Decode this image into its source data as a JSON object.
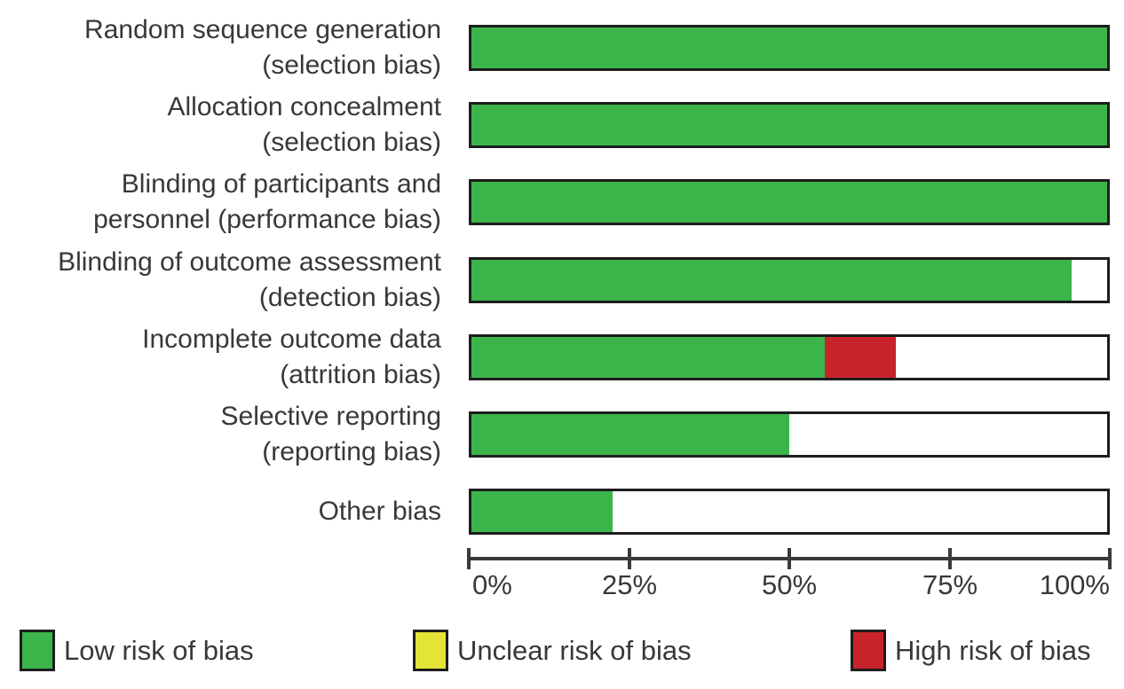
{
  "chart_data": {
    "type": "bar",
    "orientation": "horizontal",
    "stacked": true,
    "title": "",
    "xlabel": "",
    "ylabel": "",
    "grid": false,
    "xlim": [
      0,
      100
    ],
    "x_ticks": [
      0,
      25,
      50,
      75,
      100
    ],
    "x_tick_labels": [
      "0%",
      "25%",
      "50%",
      "75%",
      "100%"
    ],
    "categories": [
      [
        "Random sequence generation",
        "(selection bias)"
      ],
      [
        "Allocation concealment",
        "(selection bias)"
      ],
      [
        "Blinding of participants and",
        "personnel (performance bias)"
      ],
      [
        "Blinding of outcome assessment",
        "(detection bias)"
      ],
      [
        "Incomplete outcome data",
        "(attrition bias)"
      ],
      [
        "Selective reporting",
        "(reporting bias)"
      ],
      [
        "Other bias"
      ]
    ],
    "series": [
      {
        "key": "low",
        "name": "Low risk of bias",
        "color": "#3bb54a",
        "values": [
          100,
          100,
          100,
          94.4,
          55.6,
          50,
          22.2
        ]
      },
      {
        "key": "unclear",
        "name": "Unclear risk of bias",
        "color": "#e4e436",
        "values": [
          0,
          0,
          0,
          0,
          0,
          0,
          0
        ]
      },
      {
        "key": "high",
        "name": "High risk of bias",
        "color": "#c9232c",
        "values": [
          0,
          0,
          0,
          0,
          11.1,
          0,
          0
        ]
      }
    ],
    "bar_remainder_fill": "#ffffff",
    "legend_position": "bottom",
    "legend": [
      {
        "label": "Low risk of bias",
        "color": "#3bb54a"
      },
      {
        "label": "Unclear risk of bias",
        "color": "#e4e436"
      },
      {
        "label": "High risk of bias",
        "color": "#c9232c"
      }
    ]
  }
}
